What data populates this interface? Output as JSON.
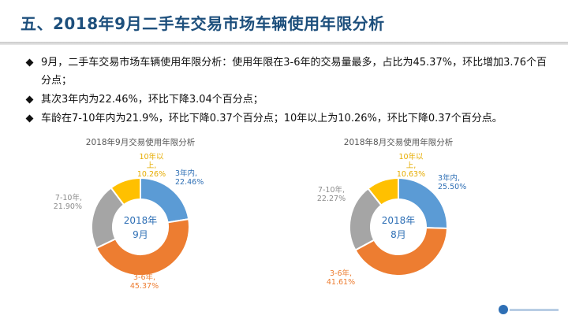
{
  "title": "五、2018年9月二手车交易市场车辆使用年限分析",
  "bullets": [
    "9月，二手车交易市场车辆使用年限分析：使用年限在3-6年的交易量最多，占比为45.37%，环比增加3.76个百分点；",
    "其次3年内为22.46%，环比下降3.04个百分点；",
    "车龄在7-10年内为21.9%，环比下降0.37个百分点；10年以上为10.26%，环比下降0.37个百分点。"
  ],
  "colors": {
    "within_3": "#5b9bd5",
    "y3_6": "#ed7d31",
    "y7_10": "#a5a5a5",
    "over_10": "#ffc000",
    "title": "#1d4f7c",
    "center": "#2e6fb5"
  },
  "chart_data": [
    {
      "type": "pie",
      "variant": "donut",
      "title": "2018年9月交易使用年限分析",
      "center_label": [
        "2018年",
        "9月"
      ],
      "slices": [
        {
          "label_lines": [
            "3年内,",
            "22.46%"
          ],
          "value": 22.46,
          "color": "#5b9bd5"
        },
        {
          "label_lines": [
            "3-6年,",
            "45.37%"
          ],
          "value": 45.37,
          "color": "#ed7d31"
        },
        {
          "label_lines": [
            "7-10年,",
            "21.90%"
          ],
          "value": 21.9,
          "color": "#a5a5a5"
        },
        {
          "label_lines": [
            "10年以",
            "上,",
            "10.26%"
          ],
          "value": 10.26,
          "color": "#ffc000"
        }
      ]
    },
    {
      "type": "pie",
      "variant": "donut",
      "title": "2018年8月交易使用年限分析",
      "center_label": [
        "2018年",
        "8月"
      ],
      "slices": [
        {
          "label_lines": [
            "3年内,",
            "25.50%"
          ],
          "value": 25.5,
          "color": "#5b9bd5"
        },
        {
          "label_lines": [
            "3-6年,",
            "41.61%"
          ],
          "value": 41.61,
          "color": "#ed7d31"
        },
        {
          "label_lines": [
            "7-10年,",
            "22.27%"
          ],
          "value": 22.27,
          "color": "#a5a5a5"
        },
        {
          "label_lines": [
            "10年以",
            "上,",
            "10.63%"
          ],
          "value": 10.63,
          "color": "#ffc000"
        }
      ]
    }
  ]
}
